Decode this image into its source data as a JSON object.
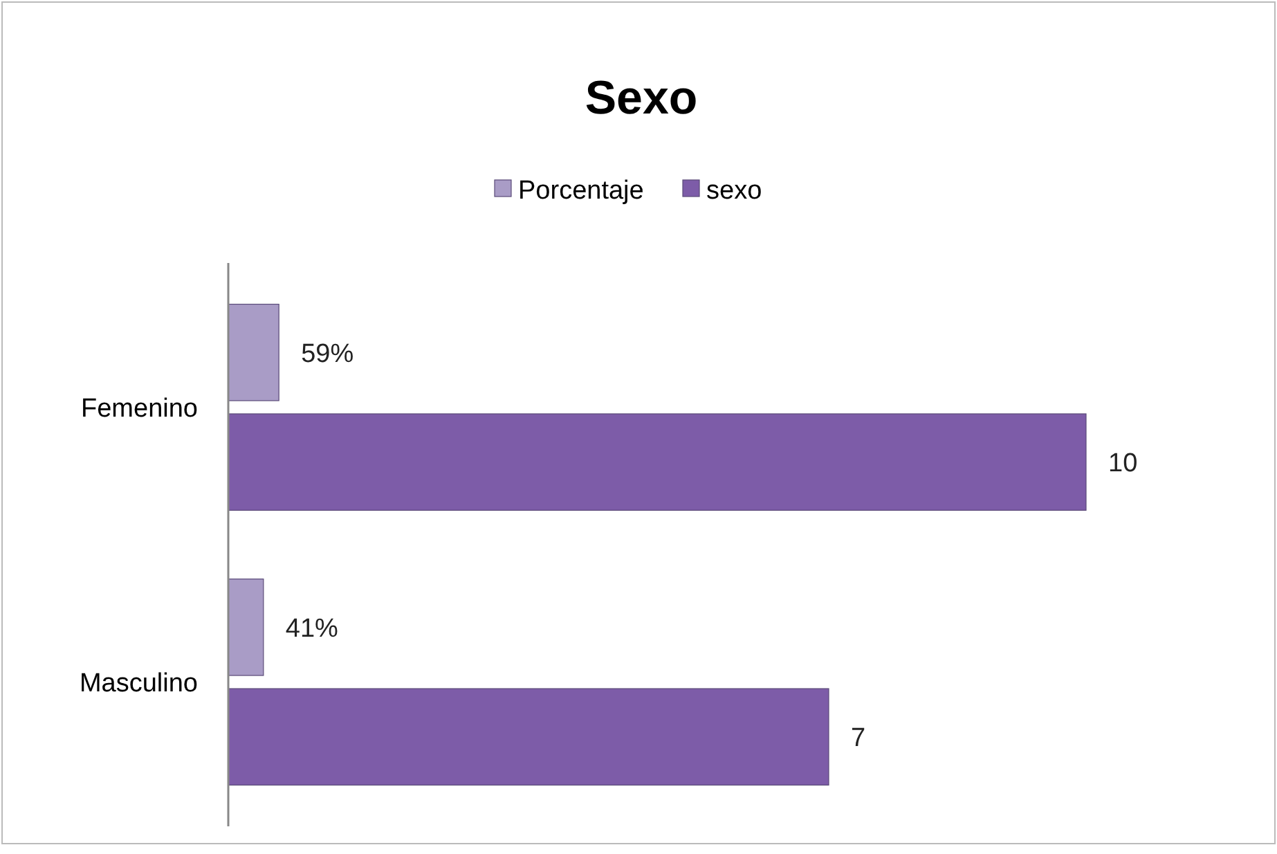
{
  "chart_data": {
    "type": "bar",
    "orientation": "horizontal",
    "title": "Sexo",
    "categories": [
      "Femenino",
      "Masculino"
    ],
    "legend": "top",
    "series": [
      {
        "name": "Porcentaje",
        "color": "#a99cc6",
        "values": [
          0.59,
          0.41
        ],
        "value_labels": [
          "59%",
          "41%"
        ]
      },
      {
        "name": "sexo",
        "color": "#7d5ca8",
        "values": [
          10,
          7
        ],
        "value_labels": [
          "10",
          "7"
        ]
      }
    ]
  }
}
